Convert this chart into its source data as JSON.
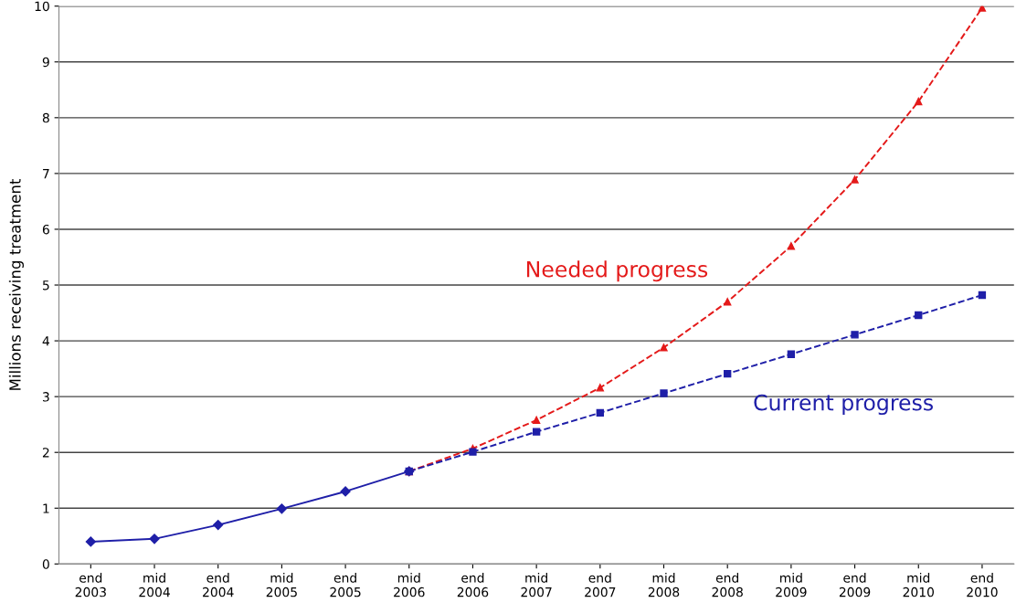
{
  "chart_data": {
    "type": "line",
    "ylabel": "Millions receiving treatment",
    "categories": [
      "end\n2003",
      "mid\n2004",
      "end\n2004",
      "mid\n2005",
      "end\n2005",
      "mid\n2006",
      "end\n2006",
      "mid\n2007",
      "end\n2007",
      "mid\n2008",
      "end\n2008",
      "mid\n2009",
      "end\n2009",
      "mid\n2010",
      "end\n2010"
    ],
    "series": [
      {
        "color": "#1f1fa8",
        "marker": "diamond",
        "line_style": "solid",
        "values": [
          0.4,
          0.45,
          0.7,
          0.99,
          1.3,
          1.66,
          null,
          null,
          null,
          null,
          null,
          null,
          null,
          null,
          null
        ]
      },
      {
        "name": "Needed progress",
        "color": "#e41a1a",
        "marker": "triangle",
        "line_style": "dashed",
        "values": [
          null,
          null,
          null,
          null,
          null,
          1.66,
          2.07,
          2.58,
          3.16,
          3.88,
          4.7,
          5.7,
          6.89,
          8.29,
          9.97
        ]
      },
      {
        "name": "Current progress",
        "color": "#1f1fa8",
        "marker": "square",
        "line_style": "dashed",
        "values": [
          null,
          null,
          null,
          null,
          null,
          1.66,
          2.01,
          2.37,
          2.71,
          3.06,
          3.41,
          3.76,
          4.11,
          4.46,
          4.82
        ]
      }
    ],
    "ylim": [
      0,
      10
    ],
    "yticks": [
      0,
      1,
      2,
      3,
      4,
      5,
      6,
      7,
      8,
      9,
      10
    ],
    "grid": "y",
    "legend": false
  }
}
